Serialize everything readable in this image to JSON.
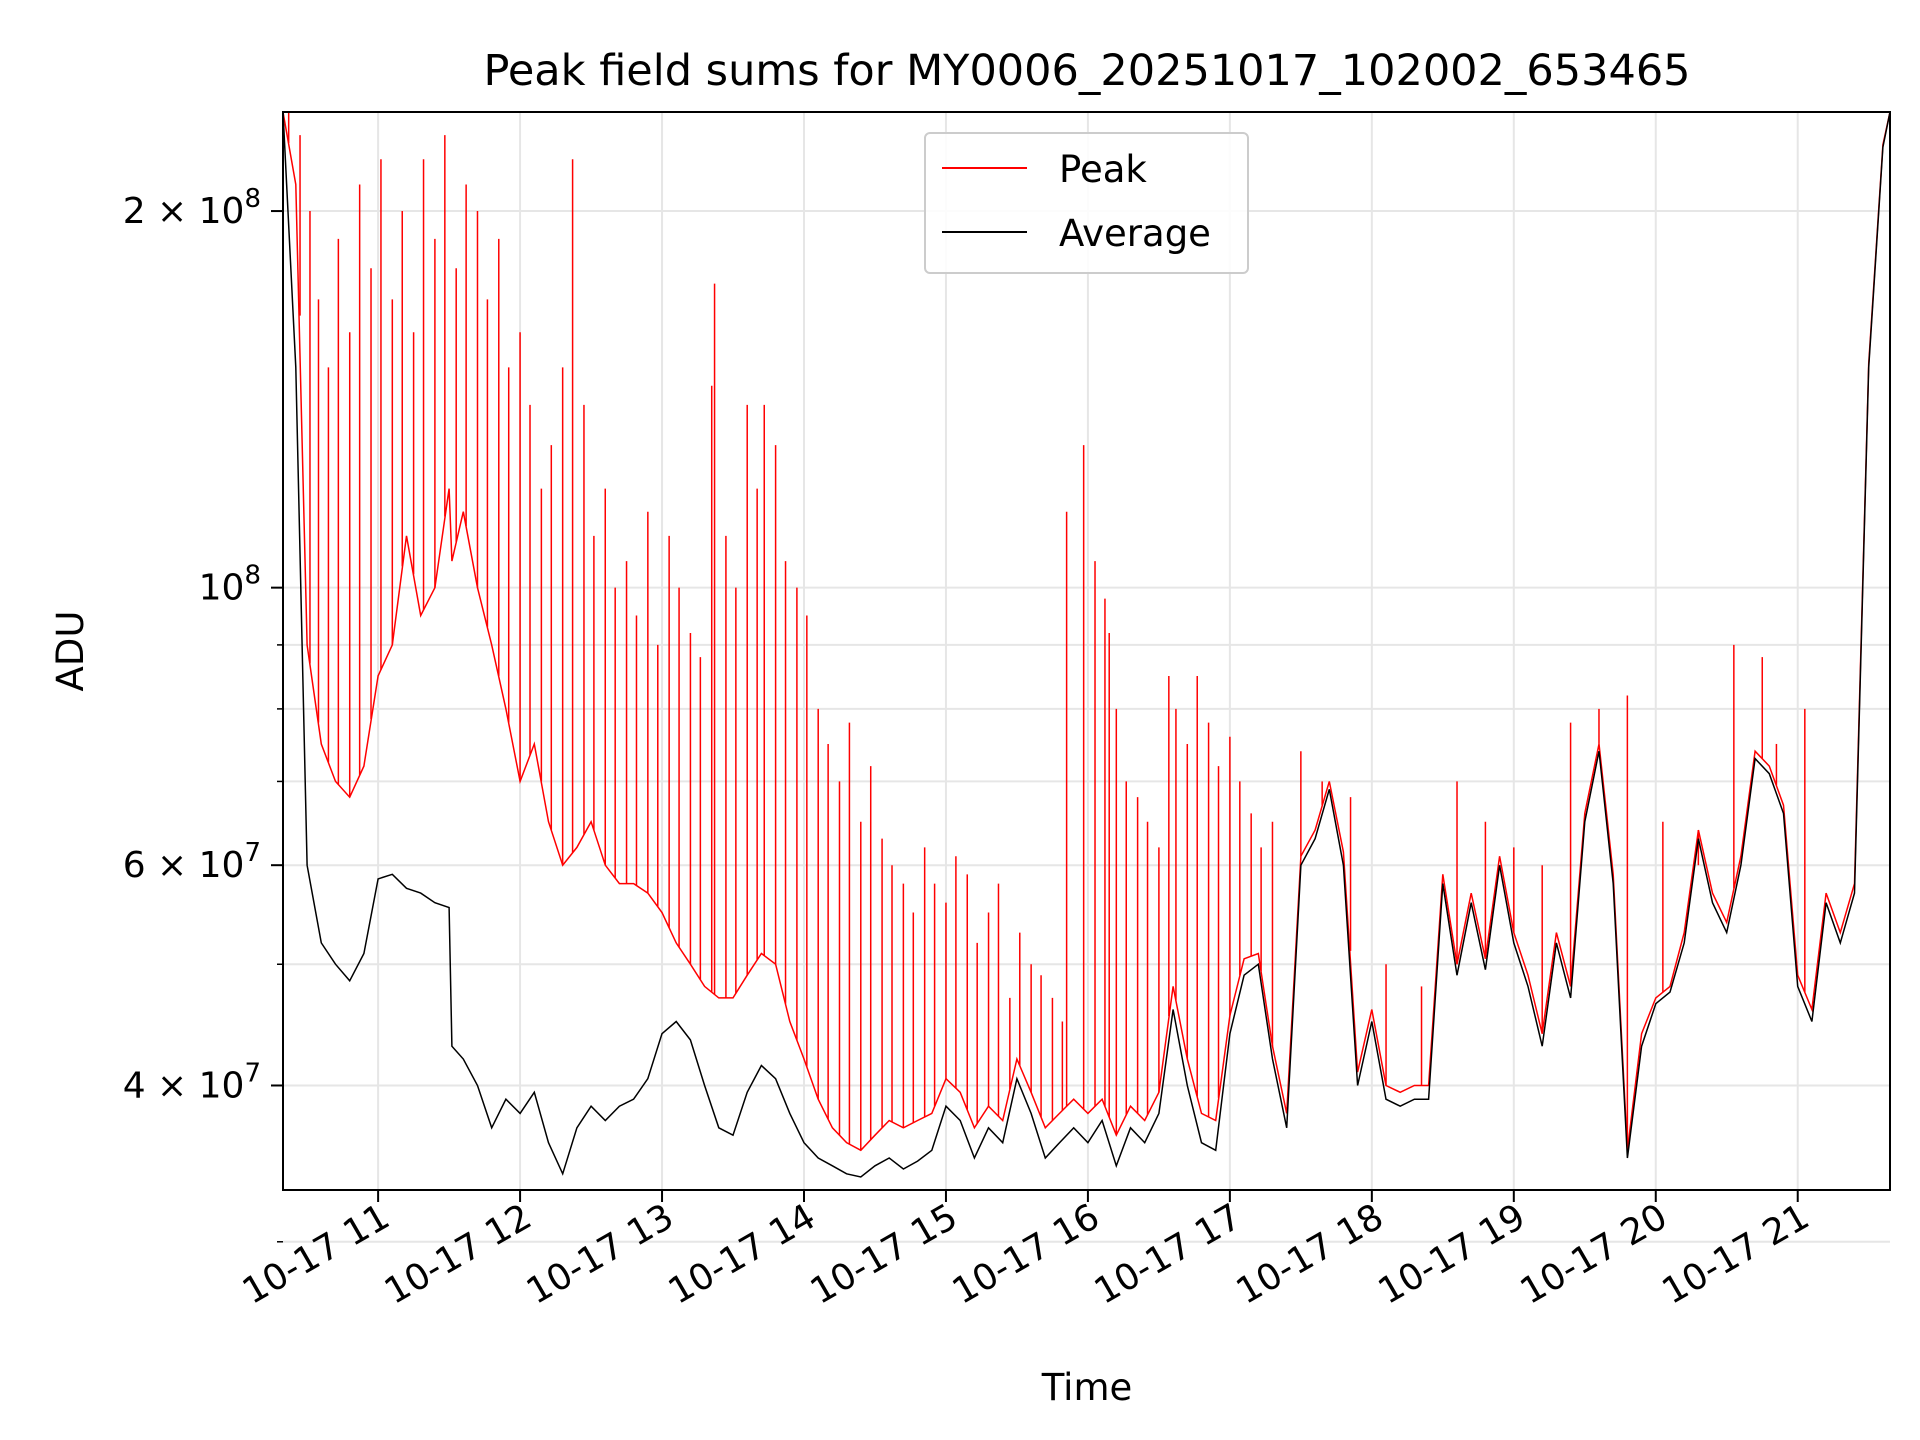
{
  "chart_data": {
    "type": "line",
    "title": "Peak field sums for MY0006_20251017_102002_653465",
    "xlabel": "Time",
    "ylabel": "ADU",
    "yscale": "log",
    "grid": true,
    "legend_position": "top-center",
    "x_unit": "hours (2025-10-17)",
    "xlim": [
      10.33,
      21.65
    ],
    "ylim": [
      33000000,
      240000000
    ],
    "x_ticks": [
      {
        "value": 11,
        "label": "10-17 11"
      },
      {
        "value": 12,
        "label": "10-17 12"
      },
      {
        "value": 13,
        "label": "10-17 13"
      },
      {
        "value": 14,
        "label": "10-17 14"
      },
      {
        "value": 15,
        "label": "10-17 15"
      },
      {
        "value": 16,
        "label": "10-17 16"
      },
      {
        "value": 17,
        "label": "10-17 17"
      },
      {
        "value": 18,
        "label": "10-17 18"
      },
      {
        "value": 19,
        "label": "10-17 19"
      },
      {
        "value": 20,
        "label": "10-17 20"
      },
      {
        "value": 21,
        "label": "10-17 21"
      }
    ],
    "y_ticks": [
      {
        "value": 40000000,
        "mantissa": "4",
        "exponent": "7"
      },
      {
        "value": 60000000,
        "mantissa": "6",
        "exponent": "7"
      },
      {
        "value": 100000000,
        "mantissa": "",
        "exponent": "8"
      },
      {
        "value": 200000000,
        "mantissa": "2",
        "exponent": "8"
      }
    ],
    "y_minor_ticks": [
      30000000,
      50000000,
      70000000,
      80000000,
      90000000
    ],
    "series": [
      {
        "name": "Average",
        "color": "#000000",
        "x": [
          10.33,
          10.42,
          10.5,
          10.6,
          10.7,
          10.8,
          10.9,
          11.0,
          11.1,
          11.2,
          11.3,
          11.4,
          11.5,
          11.52,
          11.6,
          11.7,
          11.8,
          11.9,
          12.0,
          12.1,
          12.2,
          12.3,
          12.4,
          12.5,
          12.6,
          12.7,
          12.8,
          12.9,
          13.0,
          13.1,
          13.2,
          13.3,
          13.4,
          13.5,
          13.6,
          13.7,
          13.8,
          13.9,
          14.0,
          14.1,
          14.2,
          14.3,
          14.4,
          14.5,
          14.6,
          14.7,
          14.8,
          14.9,
          15.0,
          15.1,
          15.2,
          15.3,
          15.4,
          15.5,
          15.6,
          15.7,
          15.8,
          15.9,
          16.0,
          16.1,
          16.2,
          16.3,
          16.4,
          16.5,
          16.6,
          16.7,
          16.8,
          16.9,
          17.0,
          17.1,
          17.2,
          17.3,
          17.4,
          17.5,
          17.6,
          17.7,
          17.8,
          17.9,
          18.0,
          18.1,
          18.2,
          18.3,
          18.4,
          18.5,
          18.6,
          18.7,
          18.8,
          18.9,
          19.0,
          19.1,
          19.2,
          19.3,
          19.4,
          19.5,
          19.6,
          19.7,
          19.8,
          19.9,
          20.0,
          20.1,
          20.2,
          20.3,
          20.4,
          20.5,
          20.6,
          20.7,
          20.8,
          20.9,
          21.0,
          21.1,
          21.2,
          21.3,
          21.4,
          21.5,
          21.6,
          21.65
        ],
        "values": [
          240000000,
          150000000,
          60000000,
          52000000,
          50000000,
          48500000,
          51000000,
          58500000,
          59000000,
          57500000,
          57000000,
          56000000,
          55500000,
          43000000,
          42000000,
          40000000,
          37000000,
          39000000,
          38000000,
          39500000,
          36000000,
          34000000,
          37000000,
          38500000,
          37500000,
          38500000,
          39000000,
          40500000,
          44000000,
          45000000,
          43500000,
          40000000,
          37000000,
          36500000,
          39500000,
          41500000,
          40500000,
          38000000,
          36000000,
          35000000,
          34500000,
          34000000,
          33800000,
          34500000,
          35000000,
          34300000,
          34800000,
          35500000,
          38500000,
          37500000,
          35000000,
          37000000,
          36000000,
          40500000,
          38000000,
          35000000,
          36000000,
          37000000,
          36000000,
          37500000,
          34500000,
          37000000,
          36000000,
          38000000,
          46000000,
          40000000,
          36000000,
          35500000,
          44000000,
          49000000,
          50000000,
          42000000,
          37000000,
          60000000,
          63000000,
          69000000,
          60000000,
          40000000,
          45000000,
          39000000,
          38500000,
          39000000,
          39000000,
          58000000,
          49000000,
          56000000,
          49500000,
          60000000,
          52000000,
          48000000,
          43000000,
          52000000,
          47000000,
          65000000,
          74000000,
          58000000,
          35000000,
          43000000,
          46500000,
          47500000,
          52000000,
          63000000,
          56000000,
          53000000,
          60000000,
          73000000,
          71000000,
          66000000,
          48000000,
          45000000,
          56000000,
          52000000,
          57000000,
          150000000,
          225000000,
          240000000
        ]
      },
      {
        "name": "Peak",
        "color": "#ff0000",
        "x": [
          10.33,
          10.42,
          10.5,
          10.6,
          10.7,
          10.8,
          10.9,
          11.0,
          11.1,
          11.2,
          11.3,
          11.4,
          11.5,
          11.52,
          11.6,
          11.7,
          11.8,
          11.9,
          12.0,
          12.1,
          12.2,
          12.3,
          12.4,
          12.5,
          12.6,
          12.7,
          12.8,
          12.9,
          13.0,
          13.1,
          13.2,
          13.3,
          13.4,
          13.5,
          13.6,
          13.7,
          13.8,
          13.9,
          14.0,
          14.1,
          14.2,
          14.3,
          14.4,
          14.5,
          14.6,
          14.7,
          14.8,
          14.9,
          15.0,
          15.1,
          15.2,
          15.3,
          15.4,
          15.5,
          15.6,
          15.7,
          15.8,
          15.9,
          16.0,
          16.1,
          16.2,
          16.3,
          16.4,
          16.5,
          16.6,
          16.7,
          16.8,
          16.9,
          17.0,
          17.1,
          17.2,
          17.3,
          17.4,
          17.5,
          17.6,
          17.7,
          17.8,
          17.9,
          18.0,
          18.1,
          18.2,
          18.3,
          18.4,
          18.5,
          18.6,
          18.7,
          18.8,
          18.9,
          19.0,
          19.1,
          19.2,
          19.3,
          19.4,
          19.5,
          19.6,
          19.7,
          19.8,
          19.9,
          20.0,
          20.1,
          20.2,
          20.3,
          20.4,
          20.5,
          20.6,
          20.7,
          20.8,
          20.9,
          21.0,
          21.1,
          21.2,
          21.3,
          21.4,
          21.5,
          21.6,
          21.65
        ],
        "values": [
          240000000,
          210000000,
          90000000,
          75000000,
          70000000,
          68000000,
          72000000,
          85000000,
          90000000,
          110000000,
          95000000,
          100000000,
          120000000,
          105000000,
          115000000,
          100000000,
          90000000,
          80000000,
          70000000,
          75000000,
          65000000,
          60000000,
          62000000,
          65000000,
          60000000,
          58000000,
          58000000,
          57000000,
          55000000,
          52000000,
          50000000,
          48000000,
          47000000,
          47000000,
          49000000,
          51000000,
          50000000,
          45000000,
          42000000,
          39000000,
          37000000,
          36000000,
          35500000,
          36500000,
          37500000,
          37000000,
          37500000,
          38000000,
          40500000,
          39500000,
          37000000,
          38500000,
          37500000,
          42000000,
          39500000,
          37000000,
          38000000,
          39000000,
          38000000,
          39000000,
          36500000,
          38500000,
          37500000,
          39500000,
          48000000,
          42000000,
          38000000,
          37500000,
          45500000,
          50500000,
          51000000,
          43000000,
          38000000,
          61000000,
          64000000,
          70000000,
          61500000,
          41000000,
          46000000,
          40000000,
          39500000,
          40000000,
          40000000,
          59000000,
          50000000,
          57000000,
          50500000,
          61000000,
          53000000,
          49000000,
          44000000,
          53000000,
          48000000,
          66000000,
          75000000,
          59000000,
          35500000,
          44000000,
          47000000,
          48000000,
          53000000,
          64000000,
          57000000,
          54000000,
          61000000,
          74000000,
          72000000,
          67000000,
          49000000,
          46000000,
          57000000,
          53000000,
          58000000,
          151000000,
          226000000,
          240000000
        ]
      }
    ],
    "peak_spikes": {
      "x": [
        10.37,
        10.45,
        10.52,
        10.58,
        10.65,
        10.72,
        10.8,
        10.87,
        10.95,
        11.02,
        11.1,
        11.17,
        11.25,
        11.32,
        11.4,
        11.47,
        11.55,
        11.62,
        11.7,
        11.77,
        11.85,
        11.92,
        12.0,
        12.07,
        12.15,
        12.22,
        12.3,
        12.37,
        12.45,
        12.52,
        12.6,
        12.67,
        12.75,
        12.82,
        12.9,
        12.97,
        13.05,
        13.12,
        13.2,
        13.27,
        13.35,
        13.37,
        13.45,
        13.52,
        13.6,
        13.67,
        13.72,
        13.8,
        13.87,
        13.95,
        14.02,
        14.1,
        14.17,
        14.25,
        14.32,
        14.4,
        14.47,
        14.55,
        14.62,
        14.7,
        14.77,
        14.85,
        14.92,
        15.0,
        15.07,
        15.15,
        15.22,
        15.3,
        15.37,
        15.45,
        15.52,
        15.6,
        15.67,
        15.75,
        15.82,
        15.85,
        15.97,
        16.05,
        16.12,
        16.15,
        16.2,
        16.27,
        16.35,
        16.42,
        16.5,
        16.57,
        16.62,
        16.7,
        16.77,
        16.85,
        16.92,
        17.0,
        17.07,
        17.15,
        17.22,
        17.3,
        17.5,
        17.65,
        17.85,
        18.1,
        18.35,
        18.6,
        18.8,
        19.0,
        19.2,
        19.4,
        19.6,
        19.8,
        20.05,
        20.3,
        20.55,
        20.75,
        20.85,
        21.05
      ],
      "values": [
        240000000,
        230000000,
        200000000,
        170000000,
        150000000,
        190000000,
        160000000,
        210000000,
        180000000,
        220000000,
        170000000,
        200000000,
        160000000,
        220000000,
        190000000,
        230000000,
        180000000,
        210000000,
        200000000,
        170000000,
        190000000,
        150000000,
        160000000,
        140000000,
        120000000,
        130000000,
        150000000,
        220000000,
        140000000,
        110000000,
        120000000,
        100000000,
        105000000,
        95000000,
        115000000,
        90000000,
        110000000,
        100000000,
        92000000,
        88000000,
        145000000,
        175000000,
        110000000,
        100000000,
        140000000,
        120000000,
        140000000,
        130000000,
        105000000,
        100000000,
        95000000,
        80000000,
        75000000,
        70000000,
        78000000,
        65000000,
        72000000,
        63000000,
        60000000,
        58000000,
        55000000,
        62000000,
        58000000,
        56000000,
        61000000,
        59000000,
        52000000,
        55000000,
        58000000,
        47000000,
        53000000,
        50000000,
        49000000,
        47000000,
        45000000,
        115000000,
        130000000,
        105000000,
        98000000,
        92000000,
        80000000,
        70000000,
        68000000,
        65000000,
        62000000,
        85000000,
        80000000,
        75000000,
        85000000,
        78000000,
        72000000,
        76000000,
        70000000,
        66000000,
        62000000,
        65000000,
        74000000,
        70000000,
        68000000,
        50000000,
        48000000,
        70000000,
        65000000,
        62000000,
        60000000,
        78000000,
        80000000,
        82000000,
        65000000,
        60000000,
        90000000,
        88000000,
        75000000,
        80000000
      ]
    }
  }
}
